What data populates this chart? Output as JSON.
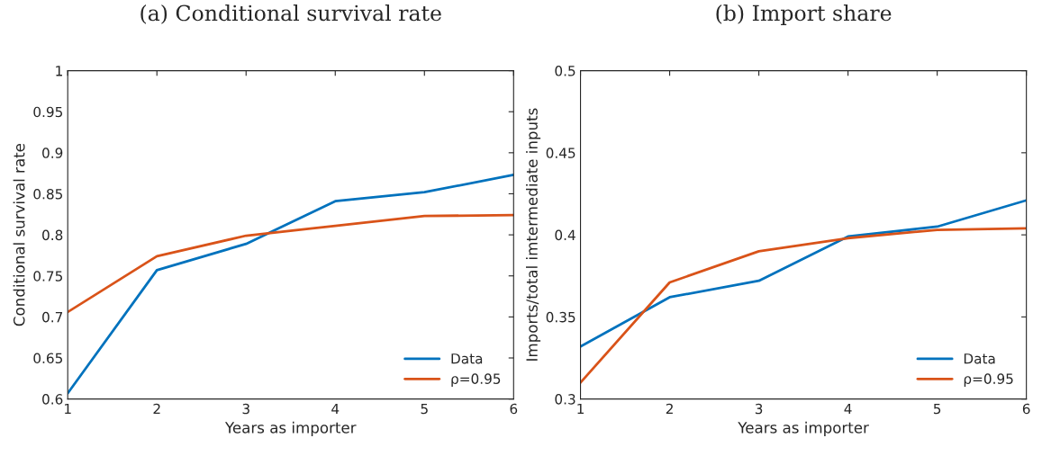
{
  "chart_data": [
    {
      "type": "line",
      "title": "(a) Conditional survival rate",
      "xlabel": "Years as importer",
      "ylabel": "Conditional survival rate",
      "x": [
        1,
        2,
        3,
        4,
        5,
        6
      ],
      "xlim": [
        1,
        6
      ],
      "xticks": [
        1,
        2,
        3,
        4,
        5,
        6
      ],
      "ylim": [
        0.6,
        1
      ],
      "yticks": [
        0.6,
        0.65,
        0.7,
        0.75,
        0.8,
        0.85,
        0.9,
        0.95,
        1
      ],
      "grid": false,
      "legend": "bottom right",
      "line_style": "solid",
      "series": [
        {
          "name": "Data",
          "color": "#0072bd",
          "values": [
            0.607,
            0.757,
            0.789,
            0.841,
            0.852,
            0.873
          ]
        },
        {
          "name": "ρ=0.95",
          "color": "#d95319",
          "values": [
            0.706,
            0.774,
            0.799,
            0.811,
            0.823,
            0.824
          ]
        }
      ]
    },
    {
      "type": "line",
      "title": "(b) Import share",
      "xlabel": "Years as importer",
      "ylabel": "Imports/total imtermediate inputs",
      "x": [
        1,
        2,
        3,
        4,
        5,
        6
      ],
      "xlim": [
        1,
        6
      ],
      "xticks": [
        1,
        2,
        3,
        4,
        5,
        6
      ],
      "ylim": [
        0.3,
        0.5
      ],
      "yticks": [
        0.3,
        0.35,
        0.4,
        0.45,
        0.5
      ],
      "grid": false,
      "legend": "bottom right",
      "line_style": "solid",
      "series": [
        {
          "name": "Data",
          "color": "#0072bd",
          "values": [
            0.332,
            0.362,
            0.372,
            0.399,
            0.405,
            0.421
          ]
        },
        {
          "name": "ρ=0.95",
          "color": "#d95319",
          "values": [
            0.31,
            0.371,
            0.39,
            0.398,
            0.403,
            0.404
          ]
        }
      ]
    }
  ]
}
